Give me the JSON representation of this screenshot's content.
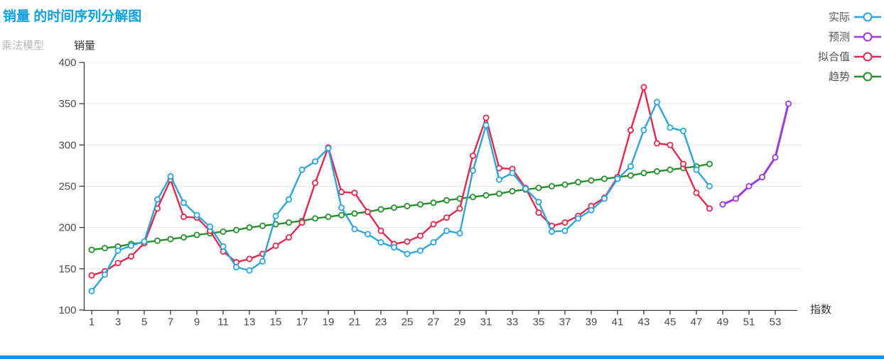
{
  "header": {
    "title": "销量 的时间序列分解图",
    "model_label": "乘法模型"
  },
  "axes": {
    "y_title": "销量",
    "x_title": "指数"
  },
  "legend": [
    {
      "id": "actual",
      "label": "实际",
      "color": "#30a3db"
    },
    {
      "id": "forecast",
      "label": "预测",
      "color": "#9b3bdb"
    },
    {
      "id": "fitted",
      "label": "拟合值",
      "color": "#e0294e"
    },
    {
      "id": "trend",
      "label": "趋势",
      "color": "#268f2d"
    }
  ],
  "accent": {
    "bottom_bar_color": "#1b8ef0"
  },
  "chart_data": {
    "type": "line",
    "title": "销量 的时间序列分解图",
    "subtitle": "乘法模型",
    "xlabel": "指数",
    "ylabel": "销量",
    "ylim": [
      100,
      400
    ],
    "xlim": [
      1,
      54
    ],
    "grid": true,
    "legend_position": "top-right",
    "y_ticks": [
      100,
      150,
      200,
      250,
      300,
      350,
      400
    ],
    "x_ticks": [
      1,
      3,
      5,
      7,
      9,
      11,
      13,
      15,
      17,
      19,
      21,
      23,
      25,
      27,
      29,
      31,
      33,
      35,
      37,
      39,
      41,
      43,
      45,
      47,
      49,
      51,
      53
    ],
    "series": [
      {
        "id": "trend",
        "name": "趋势",
        "color": "#268f2d",
        "x_start": 1,
        "line_width": 2.4,
        "values": [
          173,
          175,
          177,
          180,
          182,
          184,
          186,
          188,
          191,
          193,
          195,
          197,
          200,
          202,
          204,
          206,
          208,
          211,
          213,
          215,
          217,
          219,
          222,
          224,
          226,
          228,
          230,
          233,
          235,
          237,
          239,
          241,
          244,
          246,
          248,
          250,
          252,
          255,
          257,
          259,
          261,
          263,
          266,
          268,
          270,
          272,
          274,
          277
        ]
      },
      {
        "id": "fitted",
        "name": "拟合值",
        "color": "#e0294e",
        "x_start": 1,
        "line_width": 2.4,
        "values": [
          142,
          147,
          157,
          165,
          181,
          223,
          258,
          213,
          212,
          196,
          171,
          158,
          162,
          168,
          178,
          188,
          206,
          254,
          297,
          243,
          242,
          219,
          196,
          180,
          183,
          190,
          204,
          212,
          223,
          287,
          333,
          272,
          271,
          248,
          218,
          202,
          206,
          214,
          226,
          236,
          261,
          318,
          370,
          302,
          300,
          277,
          242,
          223
        ]
      },
      {
        "id": "actual",
        "name": "实际",
        "color": "#30a3db",
        "x_start": 1,
        "line_width": 2.4,
        "values": [
          123,
          143,
          172,
          178,
          183,
          234,
          262,
          230,
          215,
          201,
          177,
          152,
          148,
          159,
          214,
          234,
          270,
          280,
          296,
          224,
          198,
          192,
          182,
          176,
          168,
          172,
          182,
          196,
          193,
          269,
          324,
          258,
          266,
          247,
          231,
          195,
          196,
          211,
          221,
          235,
          259,
          274,
          318,
          352,
          321,
          317,
          270,
          250
        ]
      },
      {
        "id": "forecast",
        "name": "预测",
        "color": "#9b3bdb",
        "x_start": 49,
        "line_width": 3,
        "values": [
          228,
          235,
          250,
          261,
          285,
          350
        ]
      }
    ]
  }
}
